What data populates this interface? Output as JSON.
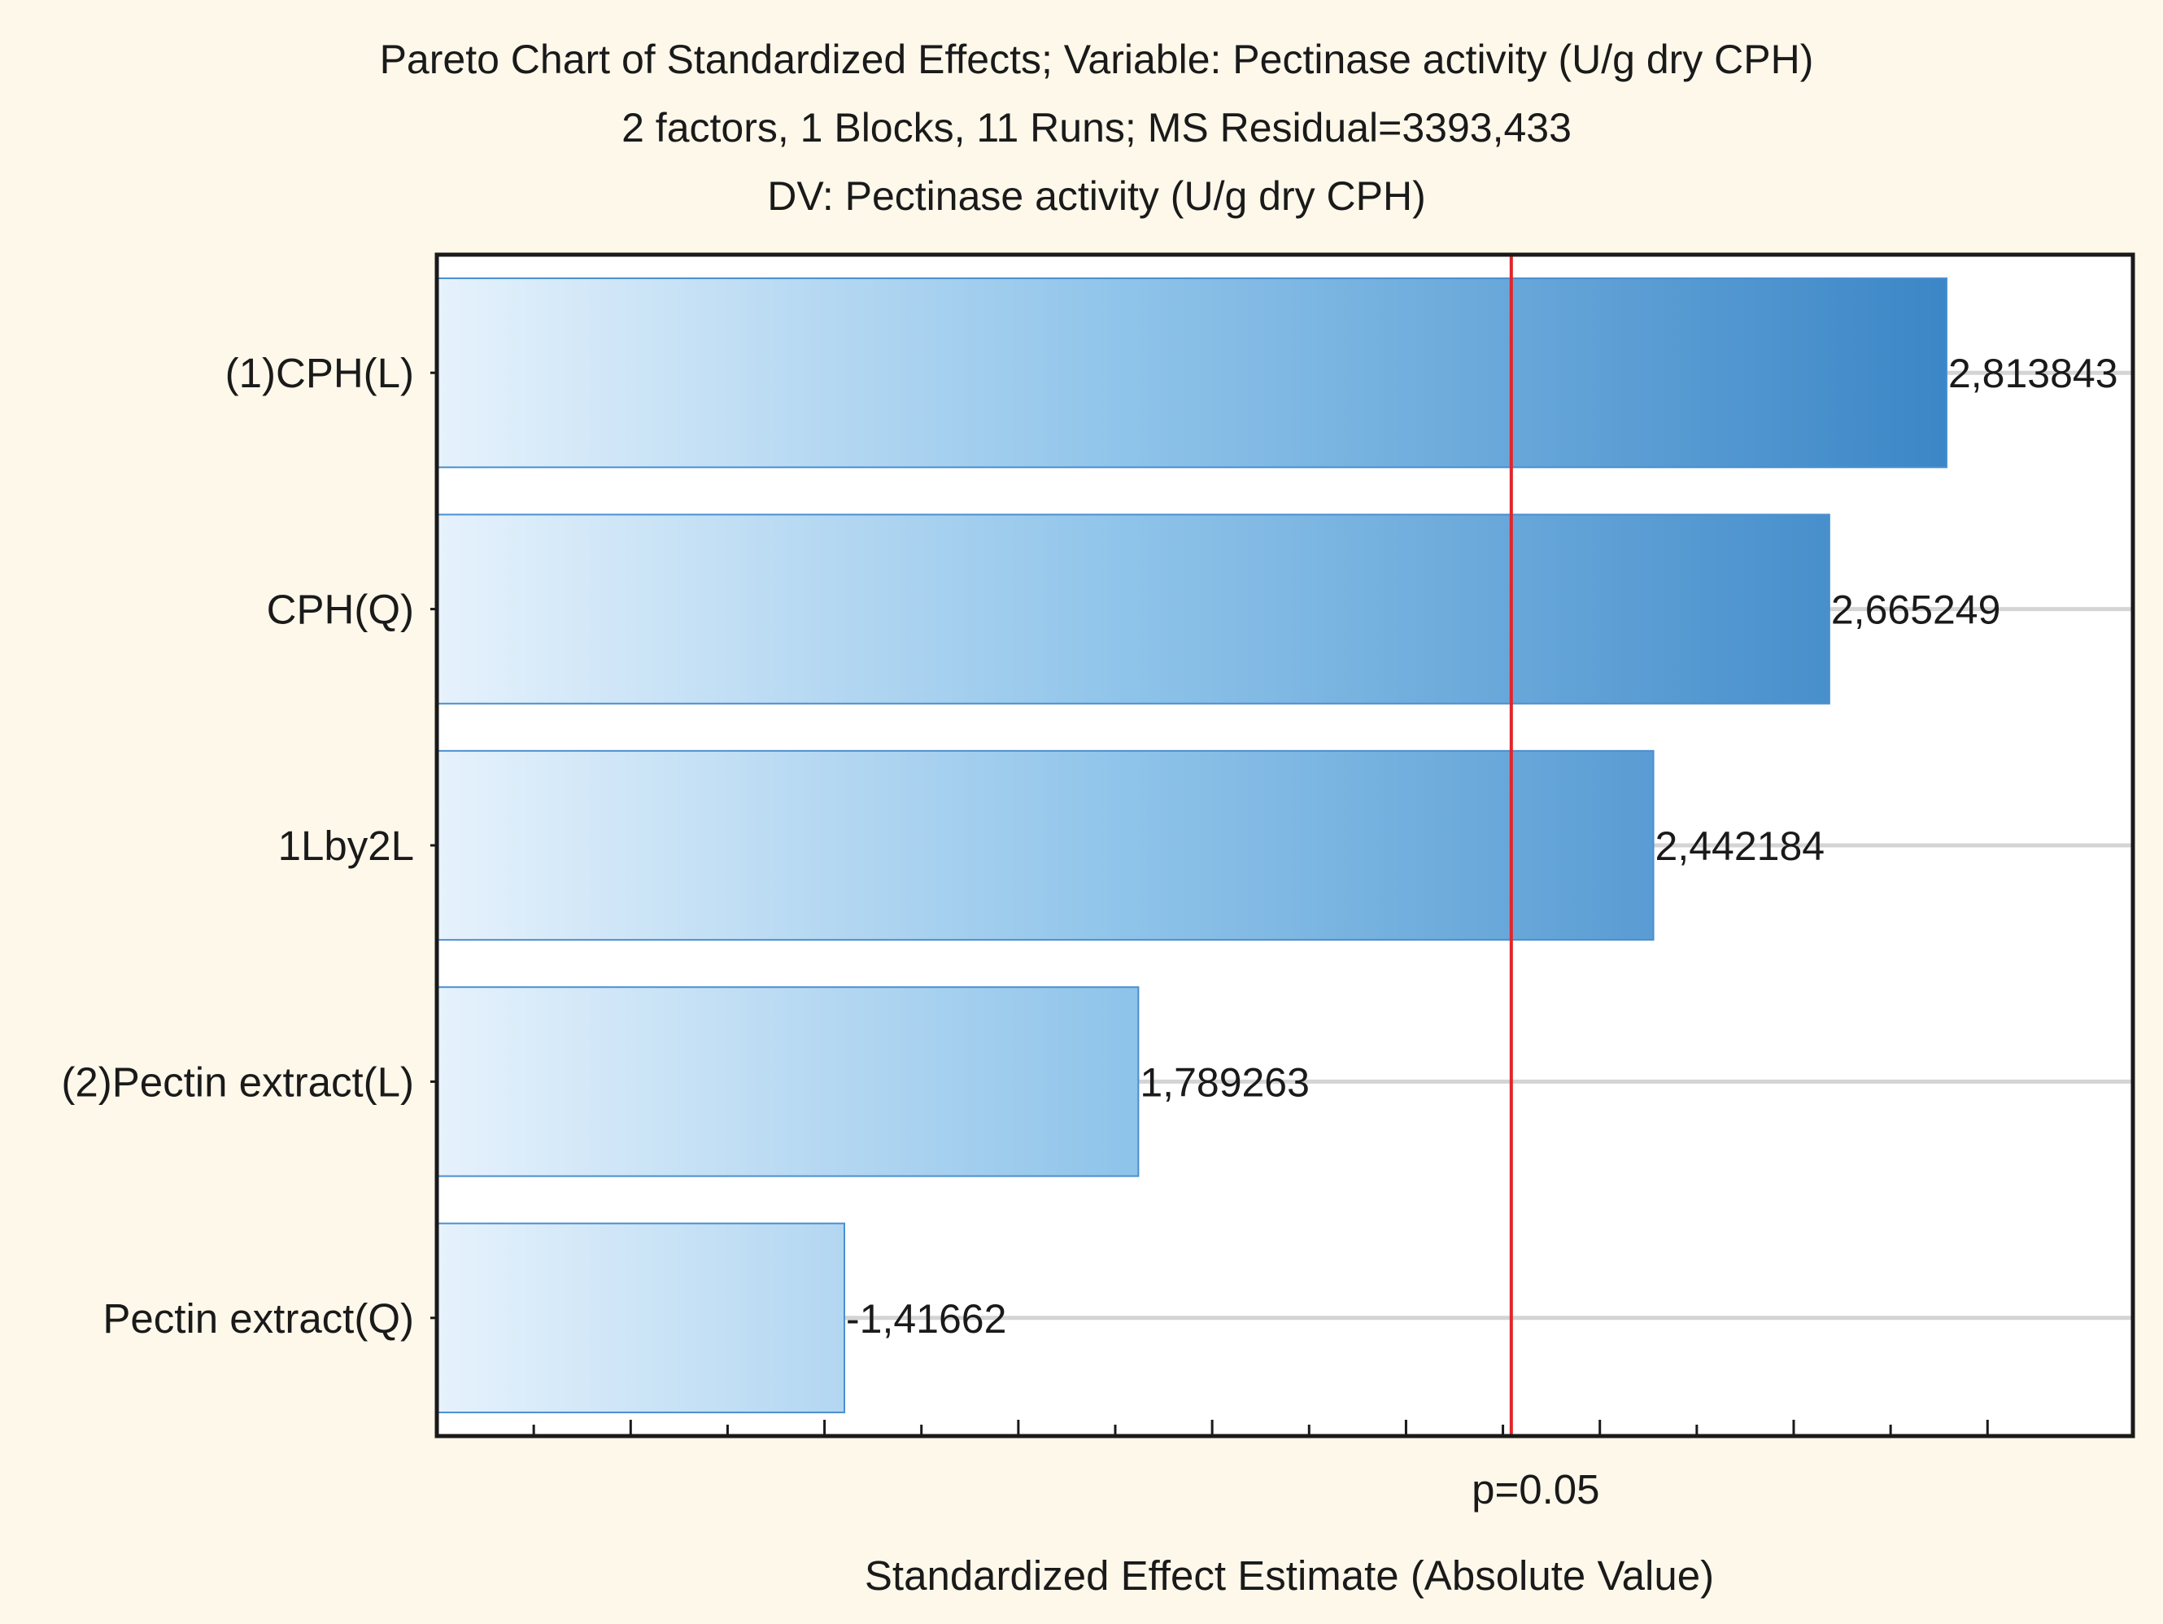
{
  "chart_data": {
    "type": "bar",
    "orientation": "horizontal",
    "title": "Pareto Chart of Standardized Effects; Variable: Pectinase activity (U/g dry CPH)",
    "subtitle": "2 factors, 1 Blocks, 11 Runs; MS Residual=3393,433",
    "dv_label": "DV: Pectinase activity (U/g dry CPH)",
    "xlabel": "Standardized Effect Estimate (Absolute Value)",
    "ylabel": "",
    "xlim": [
      0.9,
      3.05
    ],
    "categories": [
      "(1)CPH(L)",
      "CPH(Q)",
      "1Lby2L",
      "(2)Pectin extract(L)",
      "Pectin extract(Q)"
    ],
    "values": [
      2.813843,
      2.665249,
      2.442184,
      1.789263,
      1.41662
    ],
    "value_labels": [
      "2,813843",
      "2,665249",
      "2,442184",
      "1,789263",
      "-1,41662"
    ],
    "reference_line": {
      "value": 2.262,
      "label": "p=0.05",
      "color": "#e0262b"
    },
    "grid": true,
    "colors": {
      "bar_light": "#e6f2fc",
      "bar_dark": "#3a85c6",
      "bar_edge": "#4a8fd0"
    }
  }
}
